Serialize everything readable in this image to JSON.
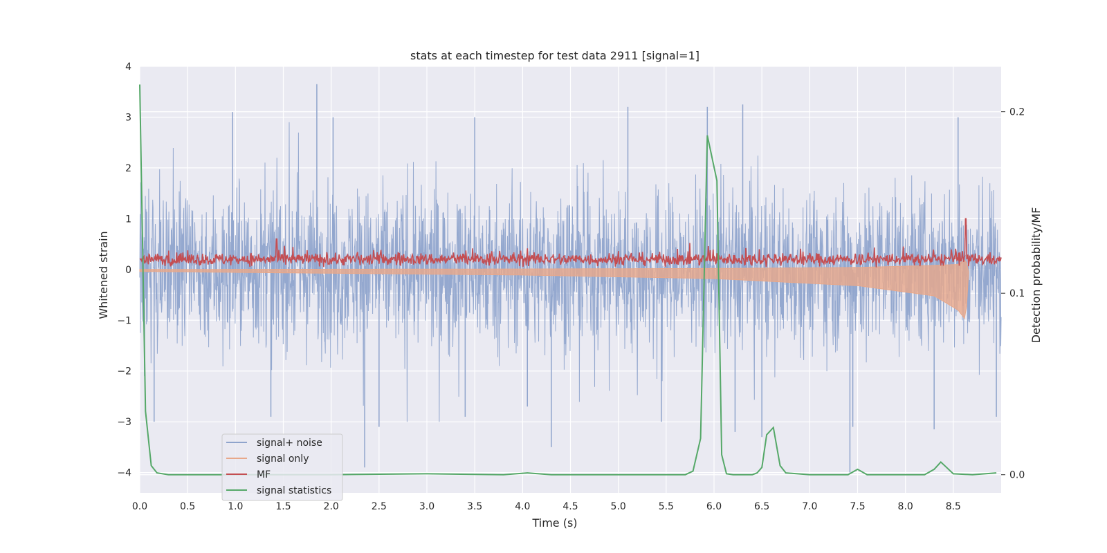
{
  "chart_data": {
    "type": "line",
    "title": "stats at each timestep for test data 2911 [signal=1]",
    "xlabel": "Time (s)",
    "ylabel": "Whitened strain",
    "ylabel_right": "Detection probability/MF",
    "xlim": [
      0.0,
      9.0
    ],
    "ylim": [
      -4.4,
      4.0
    ],
    "ylim_right": [
      -0.01,
      0.225
    ],
    "x_ticks": [
      "0.0",
      "0.5",
      "1.0",
      "1.5",
      "2.0",
      "2.5",
      "3.0",
      "3.5",
      "4.0",
      "4.5",
      "5.0",
      "5.5",
      "6.0",
      "6.5",
      "7.0",
      "7.5",
      "8.0",
      "8.5"
    ],
    "y_ticks": [
      "4",
      "3",
      "2",
      "1",
      "0",
      "−1",
      "−2",
      "−3",
      "−4"
    ],
    "y_ticks_right": [
      "0.2",
      "0.1",
      "0.0"
    ],
    "grid": true,
    "legend": {
      "location": "lower-left",
      "entries": [
        {
          "label": "signal+ noise",
          "color": "#8fa4cc"
        },
        {
          "label": "signal only",
          "color": "#e8a88a"
        },
        {
          "label": "MF",
          "color": "#c44e52"
        },
        {
          "label": "signal statistics",
          "color": "#55a868"
        }
      ]
    },
    "series": [
      {
        "name": "signal+ noise",
        "axis": "left",
        "description": "white noise, roughly Gaussian, std about 1",
        "envelope_upper": 1.4,
        "envelope_lower": -1.4,
        "peaks": [
          [
            0.05,
            -2.1
          ],
          [
            0.15,
            -3.0
          ],
          [
            0.97,
            3.1
          ],
          [
            1.37,
            -2.9
          ],
          [
            1.85,
            3.65
          ],
          [
            2.02,
            3.0
          ],
          [
            2.35,
            -3.9
          ],
          [
            2.5,
            -3.1
          ],
          [
            3.4,
            -2.9
          ],
          [
            3.5,
            3.0
          ],
          [
            4.05,
            -2.7
          ],
          [
            4.3,
            -3.5
          ],
          [
            5.1,
            3.2
          ],
          [
            5.45,
            -3.0
          ],
          [
            5.93,
            3.2
          ],
          [
            6.22,
            -3.2
          ],
          [
            6.3,
            3.25
          ],
          [
            6.5,
            -3.3
          ],
          [
            7.42,
            -4.0
          ],
          [
            7.45,
            -3.1
          ],
          [
            8.3,
            -3.15
          ],
          [
            8.55,
            3.0
          ],
          [
            8.95,
            -2.9
          ]
        ]
      },
      {
        "name": "signal only",
        "axis": "left",
        "description": "chirp growing in amplitude, offset -0.3 to -0.45, ending at merger",
        "x": [
          0.0,
          4.0,
          6.0,
          7.5,
          8.3,
          8.55,
          8.63,
          8.66
        ],
        "amplitude": [
          0.02,
          0.06,
          0.1,
          0.18,
          0.3,
          0.45,
          0.6,
          0.0
        ],
        "offset": [
          -0.02,
          -0.05,
          -0.08,
          -0.14,
          -0.22,
          -0.35,
          -0.4,
          -0.05
        ]
      },
      {
        "name": "MF",
        "axis": "left",
        "description": "matched filter output, noisy around 0.2",
        "baseline": 0.2,
        "peaks": [
          [
            1.43,
            0.6
          ],
          [
            8.63,
            1.0
          ]
        ]
      },
      {
        "name": "signal statistics",
        "axis": "right",
        "x": [
          0.0,
          0.06,
          0.12,
          0.18,
          0.3,
          0.5,
          1.0,
          2.0,
          3.0,
          3.8,
          4.05,
          4.3,
          5.0,
          5.7,
          5.78,
          5.86,
          5.93,
          6.03,
          6.08,
          6.13,
          6.2,
          6.4,
          6.45,
          6.5,
          6.55,
          6.62,
          6.69,
          6.75,
          7.0,
          7.4,
          7.5,
          7.6,
          8.2,
          8.3,
          8.37,
          8.43,
          8.5,
          8.7,
          8.95
        ],
        "values": [
          0.215,
          0.035,
          0.005,
          0.001,
          0.0,
          0.0,
          0.0,
          0.0,
          0.0005,
          0.0,
          0.001,
          0.0,
          0.0,
          0.0,
          0.002,
          0.02,
          0.187,
          0.162,
          0.011,
          0.0005,
          0.0,
          0.0,
          0.001,
          0.004,
          0.022,
          0.026,
          0.005,
          0.001,
          0.0,
          0.0,
          0.003,
          0.0,
          0.0,
          0.003,
          0.007,
          0.004,
          0.0005,
          0.0,
          0.001
        ]
      }
    ]
  }
}
